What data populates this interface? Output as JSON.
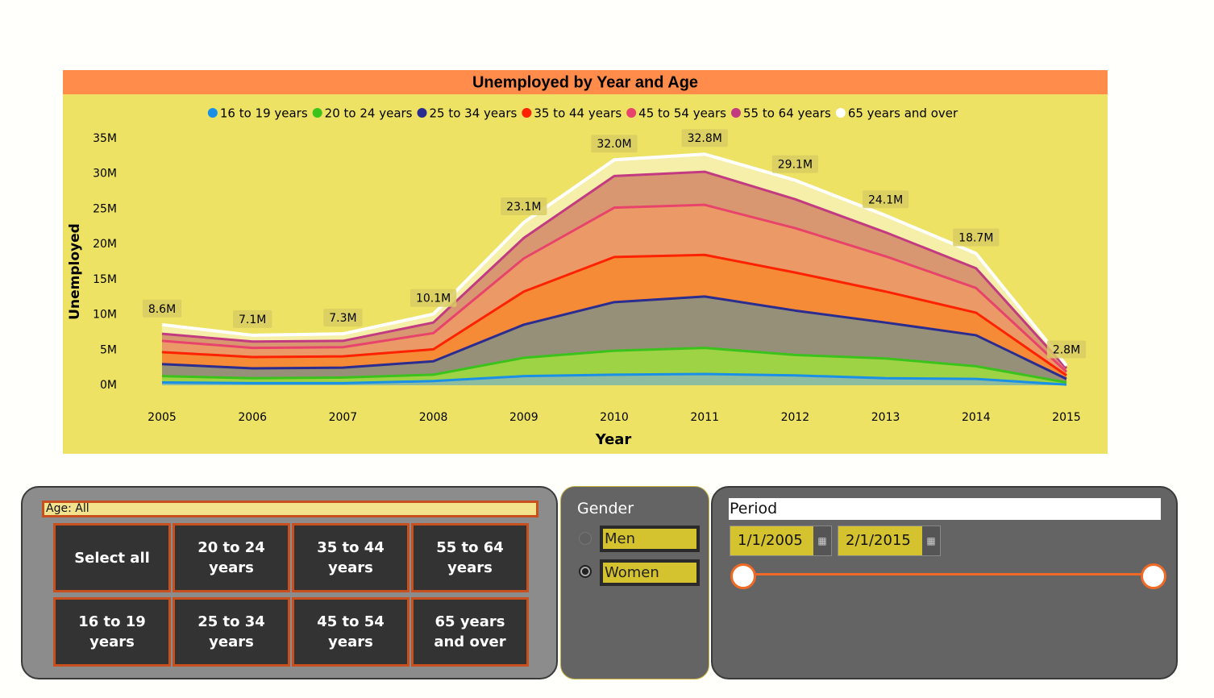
{
  "chart_data": {
    "type": "area",
    "stacked": true,
    "title": "Unemployed by Year and Age",
    "x_label": "Year",
    "y_label": "Unemployed",
    "x": [
      2005,
      2006,
      2007,
      2008,
      2009,
      2010,
      2011,
      2012,
      2013,
      2014,
      2015
    ],
    "xlim": [
      2005,
      2015
    ],
    "xticks": [
      2005,
      2006,
      2007,
      2008,
      2009,
      2010,
      2011,
      2012,
      2013,
      2014,
      2015
    ],
    "ylim": [
      0,
      35
    ],
    "yticks": [
      {
        "value": 0,
        "label": "0M"
      },
      {
        "value": 5,
        "label": "5M"
      },
      {
        "value": 10,
        "label": "10M"
      },
      {
        "value": 15,
        "label": "15M"
      },
      {
        "value": 20,
        "label": "20M"
      },
      {
        "value": 25,
        "label": "25M"
      },
      {
        "value": 30,
        "label": "30M"
      },
      {
        "value": 35,
        "label": "35M"
      }
    ],
    "grid": false,
    "legend": "top",
    "series": [
      {
        "name": "16 to 19 years",
        "color": "#1a8fe6",
        "values": [
          0.4,
          0.3,
          0.3,
          0.6,
          1.3,
          1.5,
          1.6,
          1.4,
          1.0,
          0.9,
          0.1
        ]
      },
      {
        "name": "20 to 24 years",
        "color": "#3cc21c",
        "values": [
          0.9,
          0.7,
          0.8,
          0.9,
          2.6,
          3.4,
          3.7,
          2.9,
          2.8,
          1.8,
          0.3
        ]
      },
      {
        "name": "25 to 34 years",
        "color": "#2b2c8f",
        "values": [
          1.7,
          1.4,
          1.4,
          1.9,
          4.7,
          6.9,
          7.3,
          6.3,
          5.1,
          4.4,
          0.5
        ]
      },
      {
        "name": "35 to 44 years",
        "color": "#ff2200",
        "values": [
          1.7,
          1.6,
          1.6,
          1.7,
          4.7,
          6.4,
          5.9,
          5.4,
          4.4,
          3.2,
          0.5
        ]
      },
      {
        "name": "45 to 54 years",
        "color": "#e8436a",
        "values": [
          1.6,
          1.3,
          1.3,
          2.3,
          4.7,
          7.0,
          7.1,
          6.3,
          5.0,
          3.5,
          0.5
        ]
      },
      {
        "name": "55 to 64 years",
        "color": "#c23b80",
        "values": [
          1.0,
          0.9,
          0.9,
          1.5,
          2.9,
          4.5,
          4.7,
          4.1,
          3.4,
          2.8,
          0.5
        ]
      },
      {
        "name": "65 years and over",
        "color": "#ffffff",
        "values": [
          1.3,
          0.9,
          1.0,
          1.2,
          2.2,
          2.3,
          2.5,
          2.7,
          2.4,
          2.1,
          0.4
        ]
      }
    ],
    "totals": {
      "values": [
        8.6,
        7.1,
        7.3,
        10.1,
        23.1,
        32.0,
        32.8,
        29.1,
        24.1,
        18.7,
        2.8
      ],
      "value_labels": [
        "8.6M",
        "7.1M",
        "7.3M",
        "10.1M",
        "23.1M",
        "32.0M",
        "32.8M",
        "29.1M",
        "24.1M",
        "18.7M",
        "2.8M"
      ]
    }
  },
  "age_slicer": {
    "header": "Age: All",
    "options": [
      "Select all",
      "20 to 24 years",
      "35 to 44 years",
      "55 to 64 years",
      "16 to 19 years",
      "25 to 34 years",
      "45 to 54 years",
      "65 years and over"
    ]
  },
  "gender_slicer": {
    "title": "Gender",
    "options": [
      "Men",
      "Women"
    ]
  },
  "period_slicer": {
    "title": "Period",
    "start": "1/1/2005",
    "end": "2/1/2015"
  }
}
